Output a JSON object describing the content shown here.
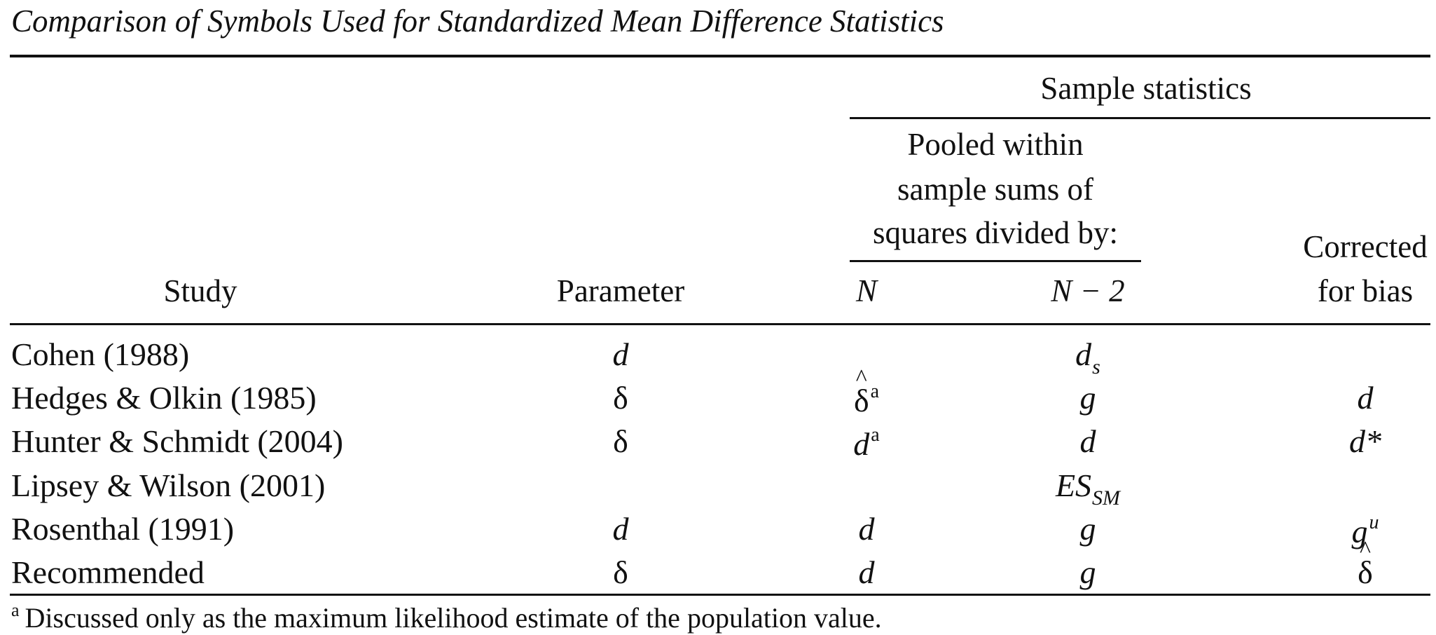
{
  "table": {
    "caption": "Comparison of Symbols Used for Standardized Mean Difference Statistics",
    "headers": {
      "study": "Study",
      "parameter": "Parameter",
      "sample_statistics": "Sample statistics",
      "pooled_line1": "Pooled within",
      "pooled_line2": "sample sums of",
      "pooled_line3": "squares divided by:",
      "n": "N",
      "n_minus_2": "N − 2",
      "corrected_line1": "Corrected",
      "corrected_line2": "for bias"
    },
    "rows": [
      {
        "study": "Cohen (1988)",
        "parameter": "d",
        "pooled_merged": "d",
        "pooled_merged_sub": "s"
      },
      {
        "study": "Hedges & Olkin (1985)",
        "parameter": "δ",
        "n": "δ",
        "n_hat": true,
        "n_sup": "a",
        "n_minus_2": "g",
        "corrected": "d"
      },
      {
        "study": "Hunter & Schmidt (2004)",
        "parameter": "δ",
        "n": "d",
        "n_sup": "a",
        "n_minus_2": "d",
        "corrected": "d*"
      },
      {
        "study": "Lipsey & Wilson (2001)",
        "pooled_merged": "ES",
        "pooled_merged_sub": "SM"
      },
      {
        "study": "Rosenthal (1991)",
        "parameter": "d",
        "n": "d",
        "n_minus_2": "g",
        "corrected": "g",
        "corrected_sup": "u"
      },
      {
        "study": "Recommended",
        "parameter": "δ",
        "n": "d",
        "n_minus_2": "g",
        "corrected": "δ",
        "corrected_hat": true
      }
    ],
    "footnote_marker": "a",
    "footnote": "Discussed only as the maximum likelihood estimate of the population value."
  }
}
